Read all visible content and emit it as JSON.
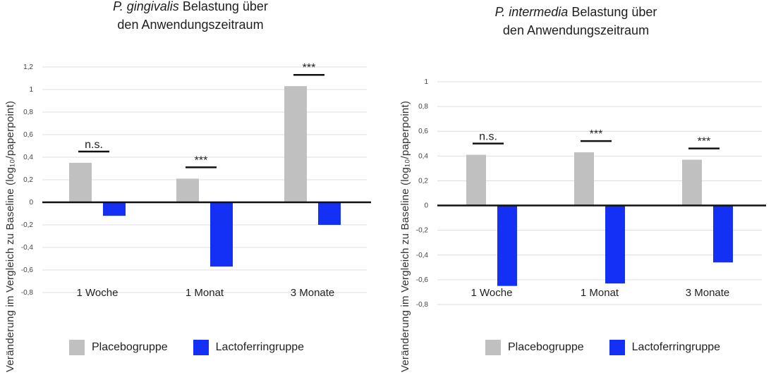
{
  "charts": [
    {
      "title_italic": "P. gingivalis",
      "title_rest": " Belastung über",
      "title_line2": "den Anwendungszeitraum",
      "ylabel": "Veränderung im Vergleich zu Baseline (log₁₀/paperpoint)",
      "legend": [
        "Placebogruppe",
        "Lactoferringruppe"
      ]
    },
    {
      "title_italic": "P. intermedia",
      "title_rest": " Belastung über",
      "title_line2": "den Anwendungszeitraum",
      "ylabel": "Veränderung im Vergleich zu Baseline (log₁₀/paperpoint)",
      "legend": [
        "Placebogruppe",
        "Lactoferringruppe"
      ]
    }
  ],
  "colors": {
    "placebo": "#c0c0c0",
    "lactoferrin": "#1430f5",
    "grid": "#dddddd",
    "axis": "#111111"
  },
  "chart_data": [
    {
      "type": "bar",
      "title": "P. gingivalis Belastung über den Anwendungszeitraum",
      "ylabel": "Veränderung im Vergleich zu Baseline (log₁₀/paperpoint)",
      "categories": [
        "1 Woche",
        "1 Monat",
        "3 Monate"
      ],
      "series": [
        {
          "name": "Placebogruppe",
          "values": [
            0.35,
            0.21,
            1.03
          ]
        },
        {
          "name": "Lactoferringruppe",
          "values": [
            -0.12,
            -0.57,
            -0.2
          ]
        }
      ],
      "significance": [
        "n.s.",
        "***",
        "***"
      ],
      "yticks": [
        "-0,8",
        "-0,6",
        "-0,4",
        "-0,2",
        "0",
        "0,2",
        "0,4",
        "0,6",
        "0,8",
        "1",
        "1,2"
      ],
      "ylim": [
        -0.8,
        1.2
      ],
      "grid": true,
      "legend_position": "bottom"
    },
    {
      "type": "bar",
      "title": "P. intermedia Belastung über den Anwendungszeitraum",
      "ylabel": "Veränderung im Vergleich zu Baseline (log₁₀/paperpoint)",
      "categories": [
        "1 Woche",
        "1 Monat",
        "3 Monate"
      ],
      "series": [
        {
          "name": "Placebogruppe",
          "values": [
            0.41,
            0.43,
            0.37
          ]
        },
        {
          "name": "Lactoferringruppe",
          "values": [
            -0.65,
            -0.63,
            -0.46
          ]
        }
      ],
      "significance": [
        "n.s.",
        "***",
        "***"
      ],
      "yticks": [
        "-0,8",
        "-0,6",
        "-0,4",
        "-0,2",
        "0",
        "0,2",
        "0,4",
        "0,6",
        "0,8",
        "1"
      ],
      "ylim": [
        -0.8,
        1.0
      ],
      "grid": true,
      "legend_position": "bottom"
    }
  ]
}
